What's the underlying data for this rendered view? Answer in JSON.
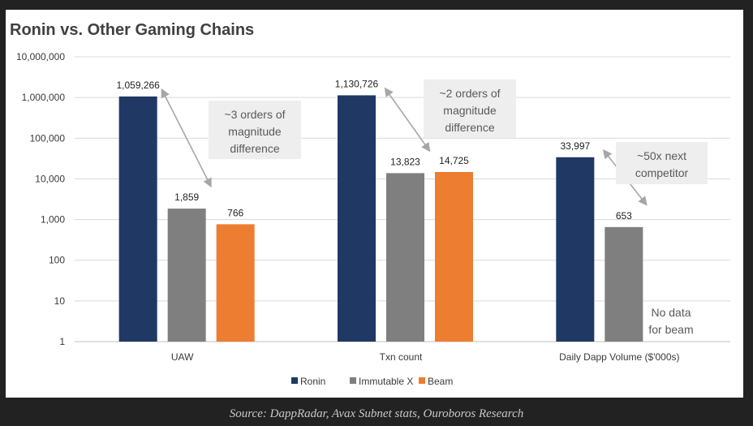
{
  "chart_data": {
    "type": "bar",
    "title": "Ronin vs. Other Gaming Chains",
    "y_scale": "log",
    "ylim": [
      1,
      10000000
    ],
    "y_ticks": [
      "1",
      "10",
      "100",
      "1,000",
      "10,000",
      "100,000",
      "1,000,000",
      "10,000,000"
    ],
    "categories": [
      "UAW",
      "Txn count",
      "Daily Dapp Volume ($'000s)"
    ],
    "series": [
      {
        "name": "Ronin",
        "color": "#203864",
        "values": [
          1059266,
          1130726,
          33997
        ],
        "labels": [
          "1,059,266",
          "1,130,726",
          "33,997"
        ]
      },
      {
        "name": "Immutable X",
        "color": "#7f7f7f",
        "values": [
          1859,
          13823,
          653
        ],
        "labels": [
          "1,859",
          "13,823",
          "653"
        ]
      },
      {
        "name": "Beam",
        "color": "#ed7d31",
        "values": [
          766,
          14725,
          null
        ],
        "labels": [
          "766",
          "14,725",
          ""
        ]
      }
    ],
    "legend_position": "bottom",
    "grid": true,
    "annotations": [
      {
        "lines": [
          "~3 orders of",
          "magnitude",
          "difference"
        ]
      },
      {
        "lines": [
          "~2 orders of",
          "magnitude",
          "difference"
        ]
      },
      {
        "lines": [
          "~50x next",
          "competitor"
        ]
      }
    ],
    "note": [
      "No data",
      "for beam"
    ]
  },
  "source": "Source: DappRadar, Avax Subnet stats, Ouroboros Research"
}
